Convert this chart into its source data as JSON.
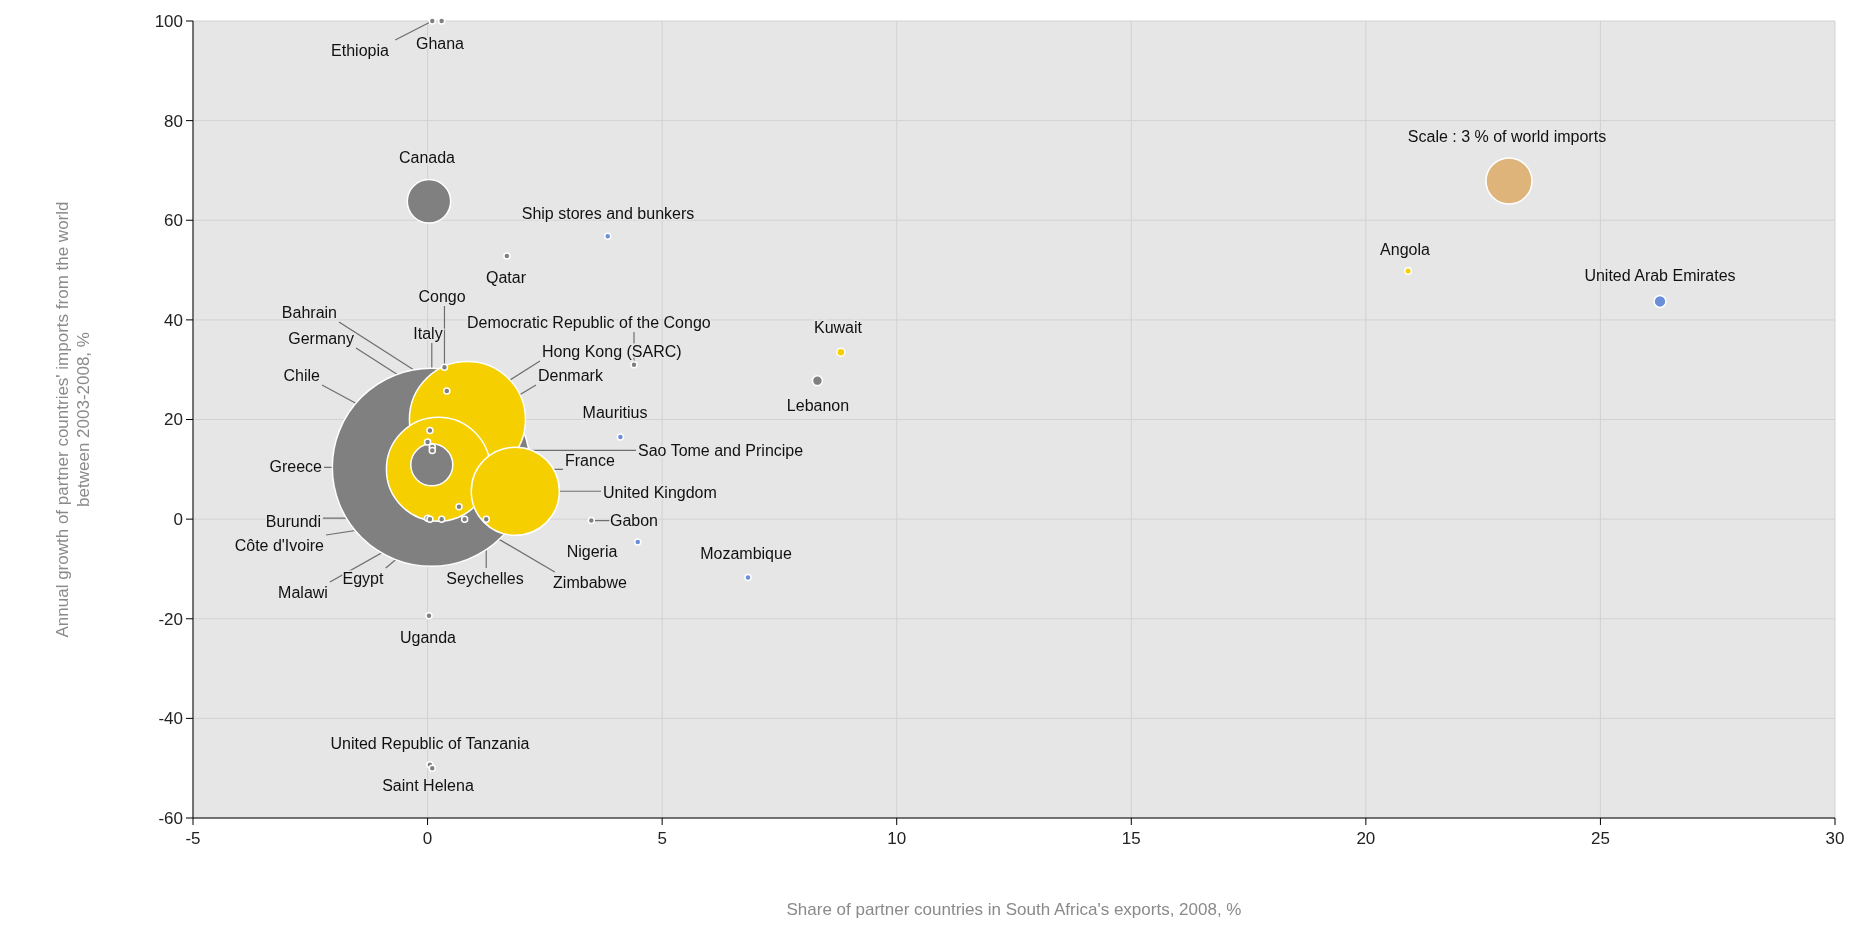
{
  "chart_data": {
    "type": "bubble",
    "xlabel": "Share of partner countries in South Africa's exports, 2008, %",
    "ylabel": "Annual growth of partner countries' imports from the world between 2003-2008, %",
    "xlim": [
      -5,
      30
    ],
    "xticks": [
      -5,
      0,
      5,
      10,
      15,
      20,
      25,
      30
    ],
    "ylim": [
      -60,
      100
    ],
    "yticks": [
      -60,
      -40,
      -20,
      0,
      20,
      40,
      60,
      80,
      100
    ],
    "grid": true,
    "size_legend": [
      {
        "value": 3,
        "label": "Scale : 3 % of world imports"
      }
    ],
    "series": [
      {
        "name": "Ethiopia",
        "color": "#808080",
        "x": [
          0.1
        ],
        "values": [
          100
        ],
        "sizes": [
          0.05
        ]
      },
      {
        "name": "Ghana",
        "color": "#808080",
        "x": [
          0.3
        ],
        "values": [
          100
        ],
        "sizes": [
          0.05
        ]
      },
      {
        "name": "Canada",
        "color": "#808080",
        "x": [
          0.03
        ],
        "values": [
          63.8
        ],
        "sizes": [
          2.67
        ]
      },
      {
        "name": "Ship stores and bunkers",
        "color": "#6a8fd8",
        "x": [
          3.84
        ],
        "values": [
          56.8
        ],
        "sizes": [
          0.05
        ]
      },
      {
        "name": "Qatar",
        "color": "#808080",
        "x": [
          1.69
        ],
        "values": [
          52.8
        ],
        "sizes": [
          0.05
        ]
      },
      {
        "name": "Congo",
        "color": "#808080",
        "x": [
          0.36
        ],
        "values": [
          30.5
        ],
        "sizes": [
          0.05
        ]
      },
      {
        "name": "Italy",
        "color": "#808080",
        "x": [
          0.09
        ],
        "values": [
          10.9
        ],
        "sizes": [
          2.5
        ]
      },
      {
        "name": "Bahrain",
        "color": "#808080",
        "x": [
          0.41
        ],
        "values": [
          25.7
        ],
        "sizes": [
          0.05
        ]
      },
      {
        "name": "Germany",
        "color": "#f5cf00",
        "x": [
          0.85
        ],
        "values": [
          20
        ],
        "sizes": [
          19.1
        ]
      },
      {
        "name": "Chile",
        "color": "#808080",
        "x": [
          0.0
        ],
        "values": [
          15.5
        ],
        "sizes": [
          0.05
        ]
      },
      {
        "name": "Democratic Republic of the Congo",
        "color": "#808080",
        "x": [
          4.4
        ],
        "values": [
          31
        ],
        "sizes": [
          0.05
        ]
      },
      {
        "name": "Hong Kong (SARC)",
        "color": "#808080",
        "x": [
          0.05
        ],
        "values": [
          17.8
        ],
        "sizes": [
          0.05
        ]
      },
      {
        "name": "Denmark",
        "color": "#808080",
        "x": [
          0.1
        ],
        "values": [
          14.5
        ],
        "sizes": [
          0.05
        ]
      },
      {
        "name": "Kuwait",
        "color": "#f5cf00",
        "x": [
          8.81
        ],
        "values": [
          33.5
        ],
        "sizes": [
          0.09
        ]
      },
      {
        "name": "Lebanon",
        "color": "#808080",
        "x": [
          8.31
        ],
        "values": [
          27.8
        ],
        "sizes": [
          0.14
        ]
      },
      {
        "name": "Mauritius",
        "color": "#6a8fd8",
        "x": [
          4.11
        ],
        "values": [
          16.5
        ],
        "sizes": [
          0.05
        ]
      },
      {
        "name": "Sao Tome and Principe",
        "color": "#808080",
        "x": [
          0.1
        ],
        "values": [
          13.8
        ],
        "sizes": [
          0.05
        ]
      },
      {
        "name": "France",
        "color": "#f5cf00",
        "x": [
          0.23
        ],
        "values": [
          10
        ],
        "sizes": [
          15.3
        ]
      },
      {
        "name": "Greece",
        "color": "#808080",
        "x": [
          0.08
        ],
        "values": [
          10.4
        ],
        "sizes": [
          55.6
        ]
      },
      {
        "name": "United Kingdom",
        "color": "#f5cf00",
        "x": [
          1.87
        ],
        "values": [
          5.6
        ],
        "sizes": [
          11
        ]
      },
      {
        "name": "Burundi",
        "color": "#808080",
        "x": [
          0.0
        ],
        "values": [
          0.2
        ],
        "sizes": [
          0.05
        ]
      },
      {
        "name": "Côte d'Ivoire",
        "color": "#808080",
        "x": [
          0.05
        ],
        "values": [
          0
        ],
        "sizes": [
          0.05
        ]
      },
      {
        "name": "Gabon",
        "color": "#808080",
        "x": [
          3.49
        ],
        "values": [
          -0.3
        ],
        "sizes": [
          0.05
        ]
      },
      {
        "name": "Nigeria",
        "color": "#6a8fd8",
        "x": [
          4.48
        ],
        "values": [
          -4.6
        ],
        "sizes": [
          0.05
        ]
      },
      {
        "name": "Mozambique",
        "color": "#6a8fd8",
        "x": [
          6.83
        ],
        "values": [
          -11.7
        ],
        "sizes": [
          0.05
        ]
      },
      {
        "name": "Egypt",
        "color": "#808080",
        "x": [
          0.67
        ],
        "values": [
          2.5
        ],
        "sizes": [
          0.05
        ]
      },
      {
        "name": "Seychelles",
        "color": "#808080",
        "x": [
          1.25
        ],
        "values": [
          0
        ],
        "sizes": [
          0.05
        ]
      },
      {
        "name": "Zimbabwe",
        "color": "#808080",
        "x": [
          0.79
        ],
        "values": [
          0
        ],
        "sizes": [
          0.05
        ]
      },
      {
        "name": "Malawi",
        "color": "#808080",
        "x": [
          0.3
        ],
        "values": [
          0
        ],
        "sizes": [
          0.05
        ]
      },
      {
        "name": "Uganda",
        "color": "#808080",
        "x": [
          0.03
        ],
        "values": [
          -19.4
        ],
        "sizes": [
          0.05
        ]
      },
      {
        "name": "United Republic of Tanzania",
        "color": "#808080",
        "x": [
          0.05
        ],
        "values": [
          -49.3
        ],
        "sizes": [
          0.05
        ]
      },
      {
        "name": "Saint Helena",
        "color": "#808080",
        "x": [
          0.1
        ],
        "values": [
          -50
        ],
        "sizes": [
          0.05
        ]
      },
      {
        "name": "Angola",
        "color": "#f5cf00",
        "x": [
          20.9
        ],
        "values": [
          49.8
        ],
        "sizes": [
          0.06
        ]
      },
      {
        "name": "United Arab Emirates",
        "color": "#6a8fd8",
        "x": [
          26.27
        ],
        "values": [
          43.7
        ],
        "sizes": [
          0.2
        ]
      }
    ]
  }
}
